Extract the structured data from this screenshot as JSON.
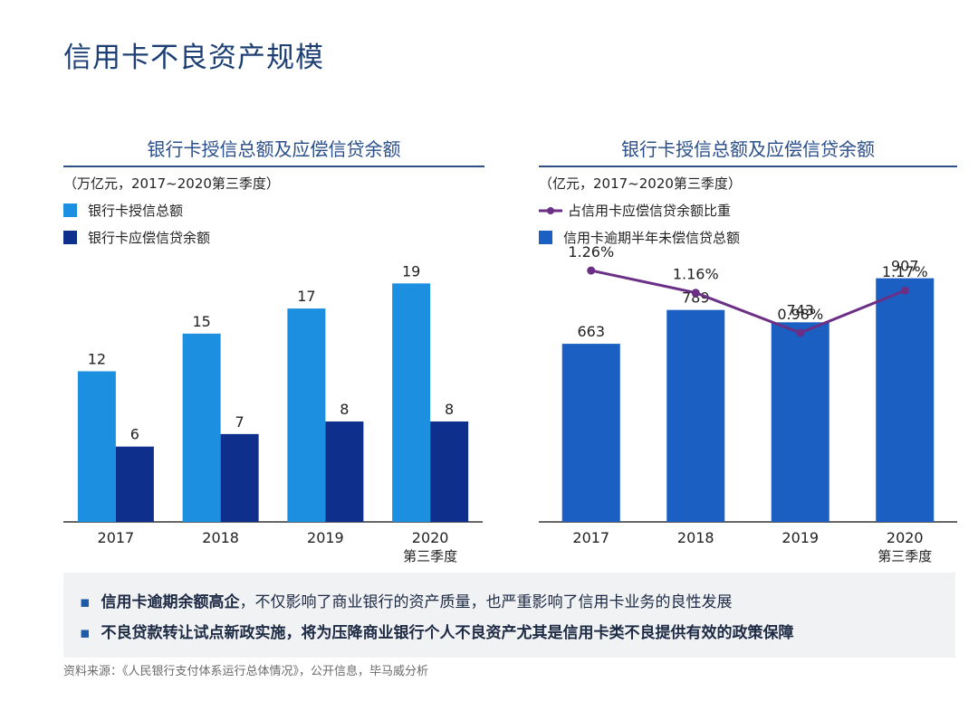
{
  "page": {
    "title": "信用卡不良资产规模"
  },
  "left_panel": {
    "title": "银行卡授信总额及应偿信贷余额",
    "unit": "（万亿元，2017~2020第三季度）",
    "legend": [
      "银行卡授信总额",
      "银行卡应偿信贷余额"
    ]
  },
  "right_panel": {
    "title": "银行卡授信总额及应偿信贷余额",
    "unit": "（亿元，2017~2020第三季度）",
    "legend": [
      "占信用卡应偿信贷余额比重",
      "信用卡逾期半年未偿信贷总额"
    ]
  },
  "callout": {
    "bullet1_strong": "信用卡逾期余额高企",
    "bullet1_rest": "，不仅影响了商业银行的资产质量，也严重影响了信用卡业务的良性发展",
    "bullet2": "不良贷款转让试点新政实施，将为压降商业银行个人不良资产尤其是信用卡类不良提供有效的政策保障"
  },
  "source": "资料来源：《人民银行支付体系运行总体情况》，公开信息，毕马威分析",
  "chart_data": [
    {
      "type": "bar",
      "title": "银行卡授信总额及应偿信贷余额",
      "categories": [
        "2017",
        "2018",
        "2019",
        "2020\n第三季度"
      ],
      "series": [
        {
          "name": "银行卡授信总额",
          "values": [
            12,
            15,
            17,
            19
          ],
          "color": "#1c8fe0"
        },
        {
          "name": "银行卡应偿信贷余额",
          "values": [
            6,
            7,
            8,
            8
          ],
          "color": "#0f2f8c"
        }
      ],
      "ylim": [
        0,
        19.6
      ],
      "grid": false
    },
    {
      "type": "bar",
      "title": "银行卡授信总额及应偿信贷余额",
      "categories": [
        "2017",
        "2018",
        "2019",
        "2020\n第三季度"
      ],
      "series": [
        {
          "name": "信用卡逾期半年未偿信贷总额",
          "type": "bar",
          "values": [
            663,
            789,
            743,
            907
          ],
          "value_labels": [
            "663",
            "789",
            "743",
            "907"
          ],
          "color": "#1a5fc1"
        },
        {
          "name": "占信用卡应偿信贷余额比重",
          "type": "line",
          "values": [
            1.26,
            1.16,
            0.98,
            1.17
          ],
          "value_labels": [
            "1.26%",
            "1.16%",
            "0.98%",
            "1.17%"
          ],
          "color": "#6b2f86"
        }
      ],
      "ylim": [
        0,
        1000
      ],
      "line_ylim": [
        0.2,
        1.5
      ],
      "grid": false
    }
  ]
}
